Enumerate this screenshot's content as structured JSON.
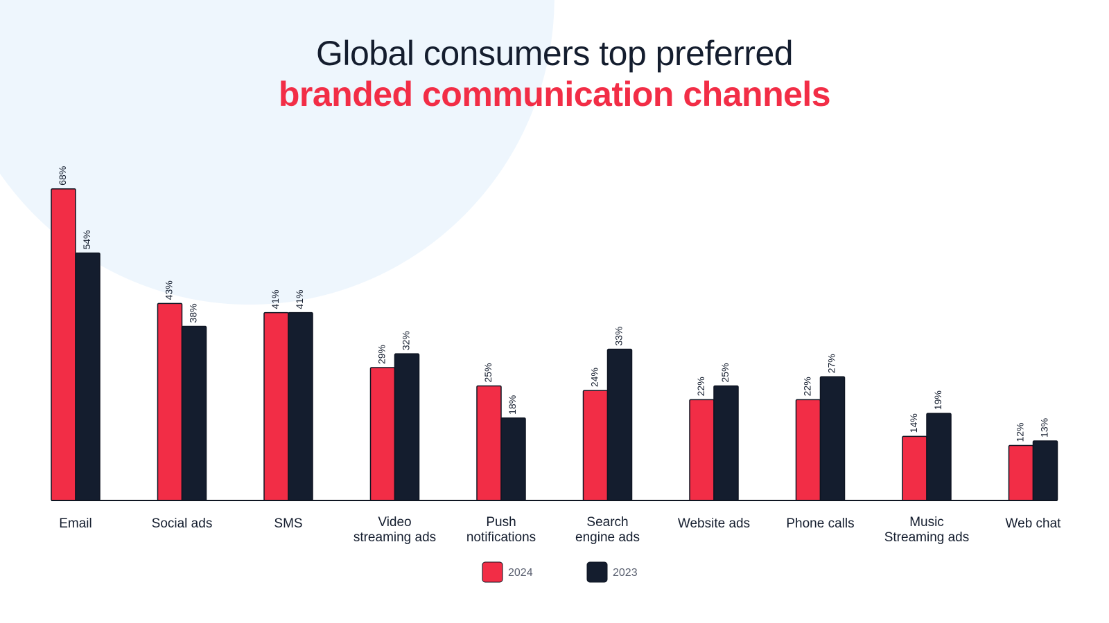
{
  "title": {
    "line1": "Global consumers top preferred",
    "line2": "branded communication channels"
  },
  "colors": {
    "accent": "#f22d46",
    "dark": "#141d2e",
    "background_circle": "#eef6fd",
    "text": "#141d2e"
  },
  "chart_data": {
    "type": "bar",
    "categories": [
      [
        "Email"
      ],
      [
        "Social ads"
      ],
      [
        "SMS"
      ],
      [
        "Video",
        "streaming ads"
      ],
      [
        "Push",
        "notifications"
      ],
      [
        "Search",
        "engine ads"
      ],
      [
        "Website ads"
      ],
      [
        "Phone calls"
      ],
      [
        "Music",
        "Streaming ads"
      ],
      [
        "Web chat"
      ]
    ],
    "series": [
      {
        "name": "2024",
        "color": "#f22d46",
        "values": [
          68,
          43,
          41,
          29,
          25,
          24,
          22,
          22,
          14,
          12
        ]
      },
      {
        "name": "2023",
        "color": "#141d2e",
        "values": [
          54,
          38,
          41,
          32,
          18,
          33,
          25,
          27,
          19,
          13
        ]
      }
    ],
    "value_suffix": "%",
    "ylim": [
      0,
      70
    ],
    "grid": false,
    "legend_position": "bottom-center"
  }
}
